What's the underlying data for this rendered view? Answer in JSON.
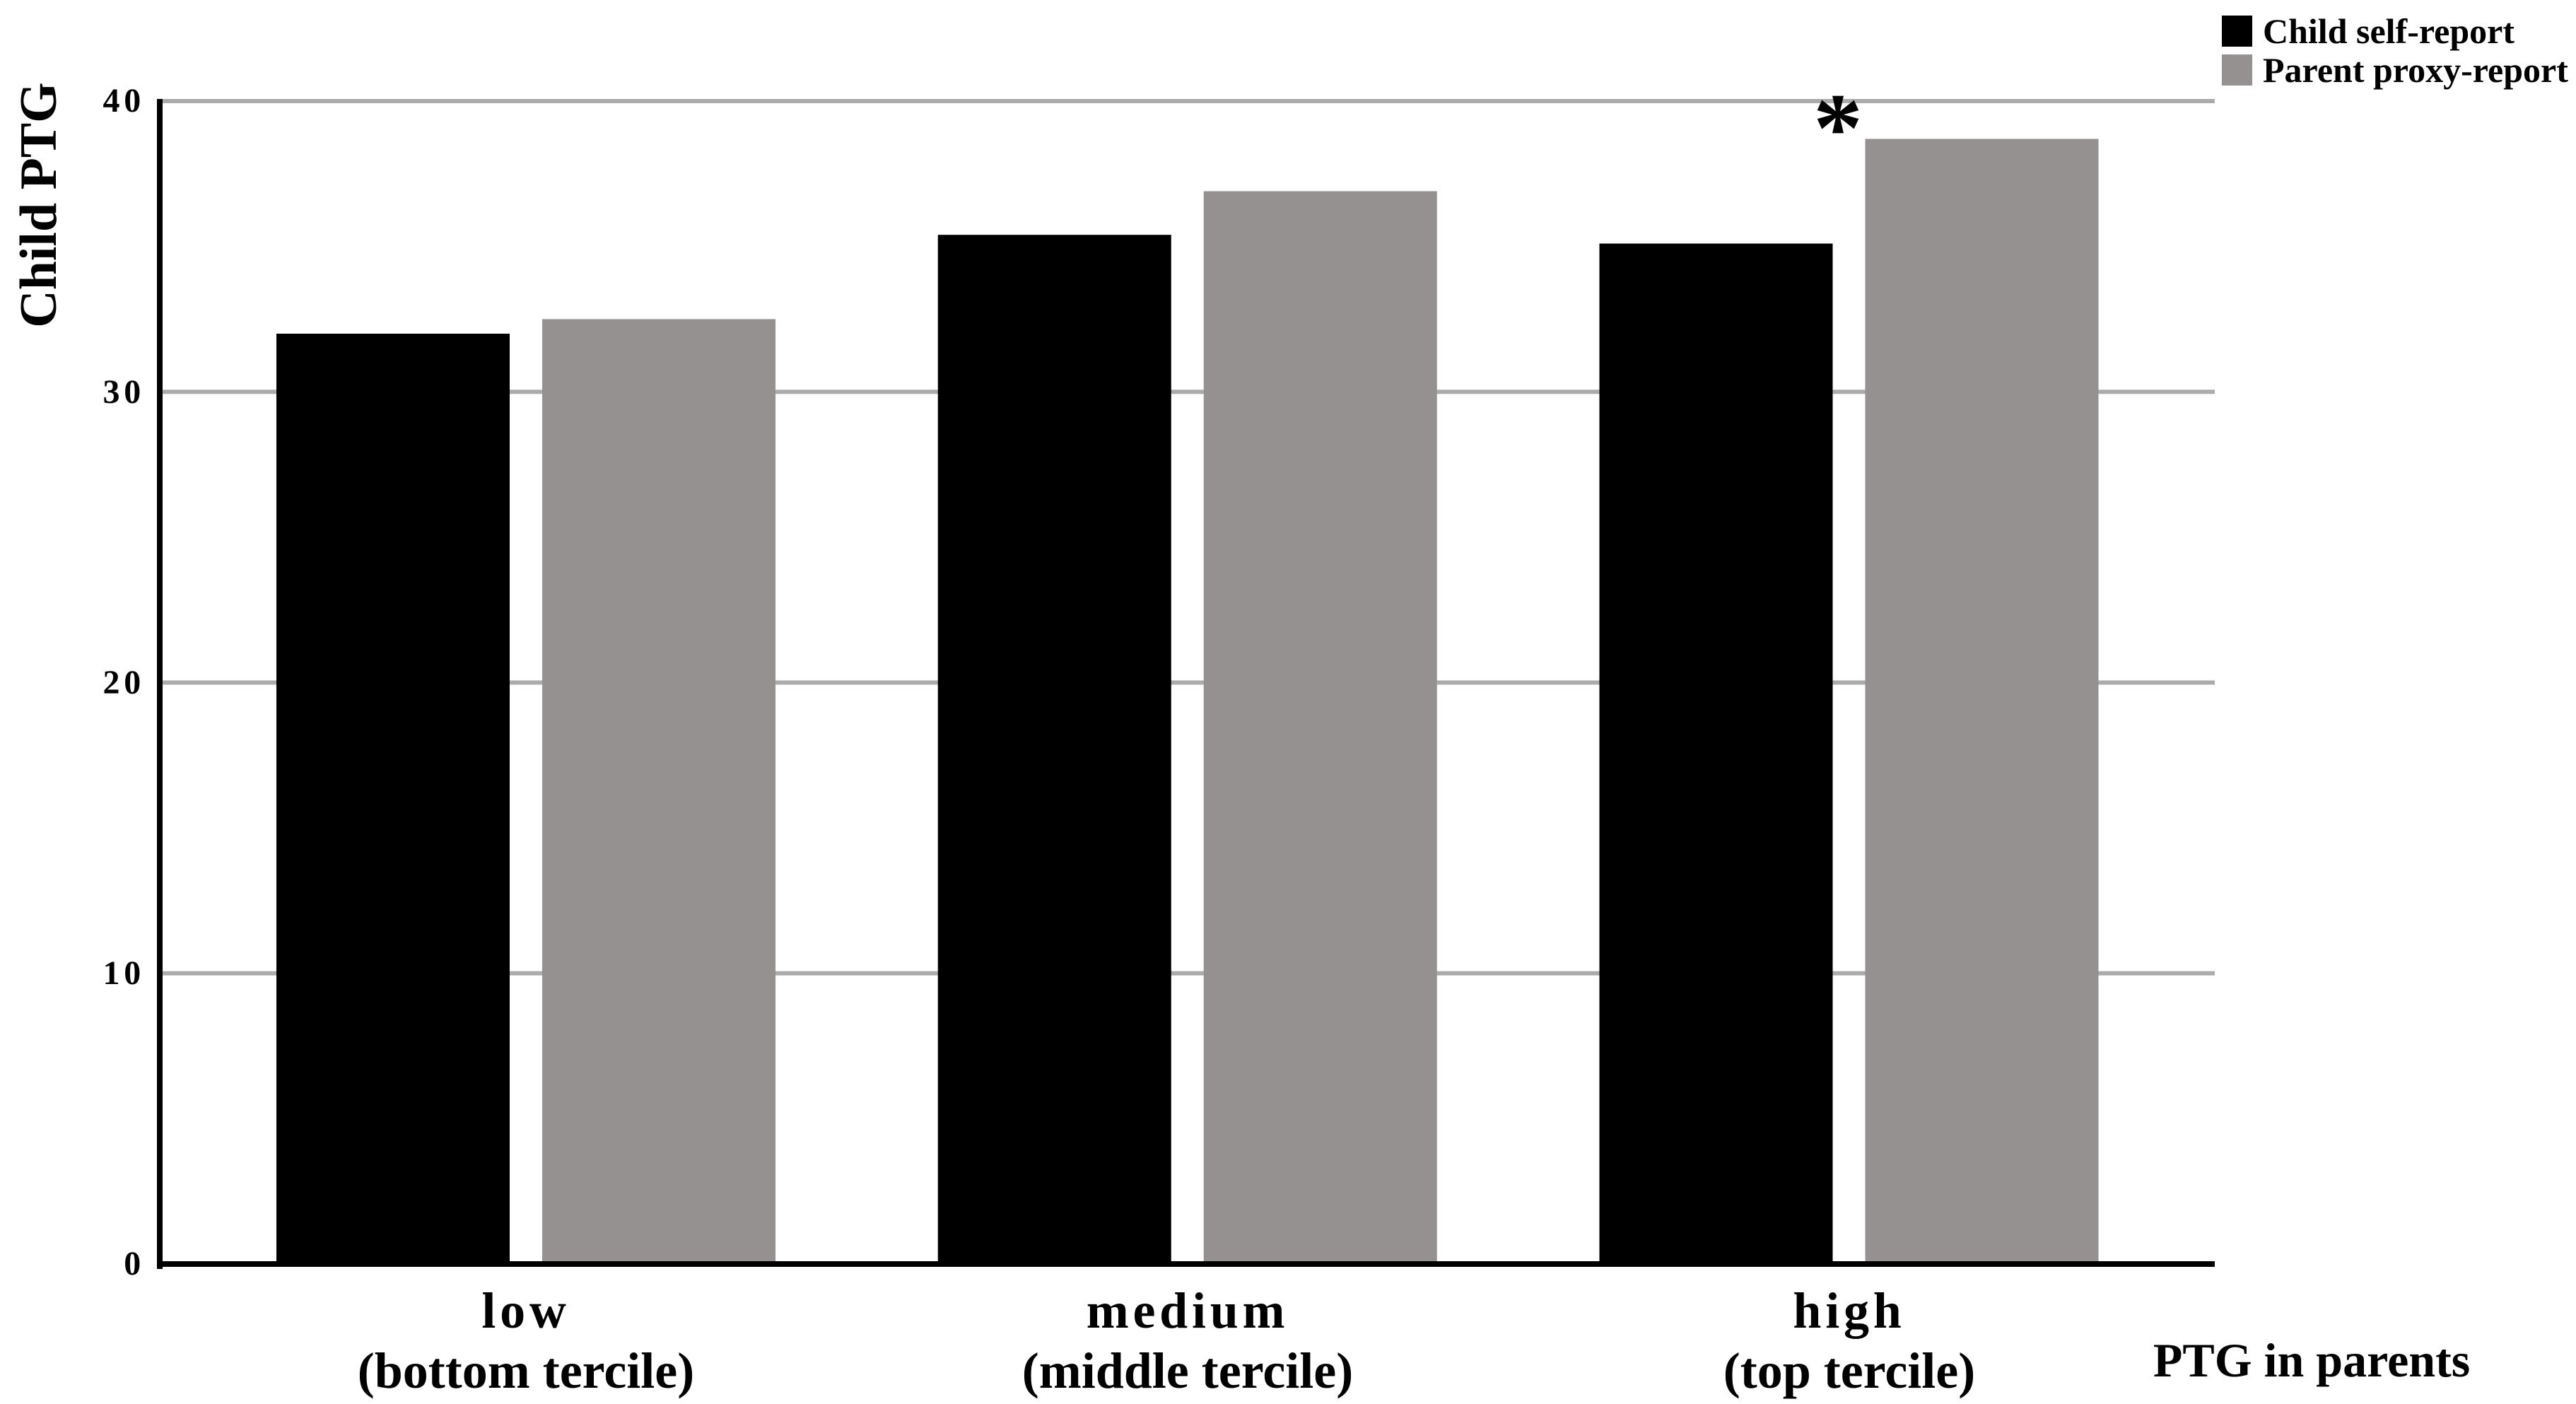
{
  "figure": {
    "background": "#ffffff"
  },
  "chart_data": {
    "type": "bar",
    "title": "",
    "categories": [
      [
        "low",
        "(bottom tercile)"
      ],
      [
        "medium",
        "(middle tercile)"
      ],
      [
        "high",
        "(top tercile)"
      ]
    ],
    "series": [
      {
        "name": "Child self-report",
        "color": "#000000",
        "values": [
          32.0,
          35.4,
          35.1
        ]
      },
      {
        "name": "Parent proxy-report",
        "color": "#949190",
        "values": [
          32.5,
          36.9,
          38.7
        ]
      }
    ],
    "xlabel": "PTG in parents",
    "ylabel": "Child PTG",
    "yticks": [
      0,
      10,
      20,
      30,
      40
    ],
    "ylim": [
      0,
      40
    ],
    "grid": {
      "horizontal": true,
      "color": "#ababab"
    },
    "axis_color": "#000000",
    "legend_position": "top-right",
    "annotations": [
      {
        "text": "*",
        "category": "high",
        "series": "Parent proxy-report",
        "position": "above-bar"
      }
    ]
  }
}
